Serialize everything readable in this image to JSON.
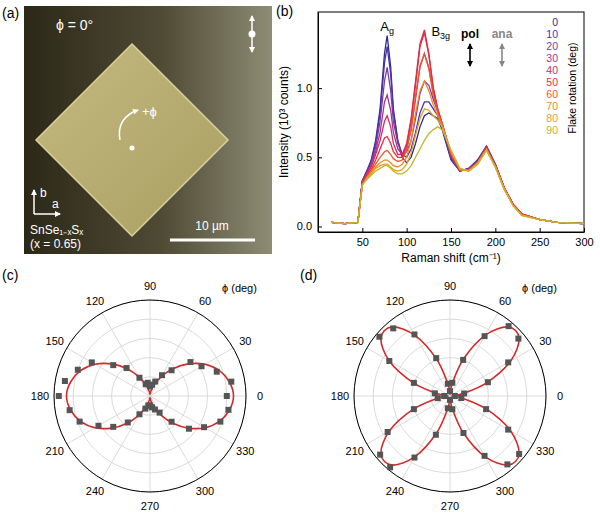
{
  "chart_data": [
    {
      "type": "image",
      "panel": "(a)",
      "annotations": {
        "angle": "ϕ = 0°",
        "rotation": "+ϕ",
        "axis_b": "b",
        "axis_a": "a",
        "formula": "SnSe₁₋ₓSₓ",
        "composition": "(x = 0.65)",
        "scale_bar": "10 µm"
      }
    },
    {
      "type": "line",
      "panel": "(b)",
      "xlabel": "Raman shift (cm⁻¹)",
      "ylabel": "Intensity (10³ counts)",
      "x": [
        15,
        30,
        45,
        50,
        55,
        60,
        65,
        70,
        75,
        78,
        82,
        85,
        90,
        95,
        100,
        105,
        110,
        115,
        120,
        125,
        130,
        135,
        140,
        150,
        160,
        170,
        180,
        190,
        200,
        210,
        220,
        230,
        250,
        270,
        300
      ],
      "xlim": [
        0,
        300
      ],
      "xticks": [
        50,
        100,
        150,
        200,
        250,
        300
      ],
      "ylim": [
        -0.04,
        1.55
      ],
      "yticks": [
        {
          "value": 0,
          "label": "0.0"
        },
        {
          "value": 0.5,
          "label": "0.5"
        },
        {
          "value": 1,
          "label": "1.0"
        }
      ],
      "legend": "upper right",
      "legend_title": "Flake rotation (deg)",
      "annotations": [
        "pol",
        "ana"
      ],
      "peak_labels": [
        {
          "text": "A",
          "subscript": "g",
          "x": 78
        },
        {
          "text": "B",
          "subscript": "3g",
          "x": 120
        }
      ],
      "series": [
        {
          "name": "0",
          "color": "#2b2a8c",
          "values": [
            0.03,
            0.02,
            0.03,
            0.33,
            0.4,
            0.48,
            0.62,
            0.85,
            1.25,
            1.38,
            1.15,
            0.85,
            0.62,
            0.5,
            0.46,
            0.5,
            0.6,
            0.72,
            0.8,
            0.82,
            0.8,
            0.78,
            0.7,
            0.48,
            0.4,
            0.42,
            0.48,
            0.58,
            0.45,
            0.28,
            0.16,
            0.09,
            0.05,
            0.03,
            0.02
          ]
        },
        {
          "name": "10",
          "color": "#4b35a8",
          "values": [
            0.03,
            0.02,
            0.03,
            0.33,
            0.4,
            0.47,
            0.6,
            0.82,
            1.18,
            1.3,
            1.1,
            0.82,
            0.62,
            0.52,
            0.5,
            0.56,
            0.68,
            0.82,
            0.9,
            0.9,
            0.85,
            0.8,
            0.72,
            0.49,
            0.4,
            0.42,
            0.48,
            0.58,
            0.45,
            0.28,
            0.16,
            0.09,
            0.05,
            0.03,
            0.02
          ]
        },
        {
          "name": "20",
          "color": "#7a3aa8",
          "values": [
            0.03,
            0.02,
            0.03,
            0.33,
            0.39,
            0.46,
            0.57,
            0.76,
            1.05,
            1.15,
            0.98,
            0.76,
            0.6,
            0.52,
            0.54,
            0.62,
            0.78,
            0.96,
            1.05,
            1.02,
            0.92,
            0.83,
            0.73,
            0.5,
            0.4,
            0.42,
            0.47,
            0.58,
            0.45,
            0.28,
            0.16,
            0.09,
            0.05,
            0.03,
            0.02
          ]
        },
        {
          "name": "30",
          "color": "#a8348c",
          "values": [
            0.03,
            0.02,
            0.03,
            0.32,
            0.38,
            0.45,
            0.54,
            0.68,
            0.9,
            0.95,
            0.84,
            0.68,
            0.56,
            0.52,
            0.57,
            0.7,
            0.92,
            1.15,
            1.25,
            1.15,
            0.96,
            0.84,
            0.74,
            0.51,
            0.41,
            0.41,
            0.47,
            0.57,
            0.44,
            0.28,
            0.16,
            0.09,
            0.05,
            0.03,
            0.02
          ]
        },
        {
          "name": "40",
          "color": "#cc2c62",
          "values": [
            0.03,
            0.02,
            0.03,
            0.32,
            0.38,
            0.43,
            0.52,
            0.62,
            0.76,
            0.8,
            0.72,
            0.6,
            0.52,
            0.52,
            0.6,
            0.78,
            1.05,
            1.32,
            1.42,
            1.25,
            1.0,
            0.85,
            0.75,
            0.52,
            0.41,
            0.41,
            0.46,
            0.57,
            0.44,
            0.28,
            0.16,
            0.09,
            0.05,
            0.03,
            0.02
          ]
        },
        {
          "name": "50",
          "color": "#e52e3a",
          "values": [
            0.03,
            0.02,
            0.03,
            0.31,
            0.37,
            0.41,
            0.48,
            0.56,
            0.64,
            0.65,
            0.6,
            0.54,
            0.5,
            0.5,
            0.58,
            0.76,
            1.02,
            1.3,
            1.4,
            1.24,
            1.0,
            0.85,
            0.74,
            0.52,
            0.41,
            0.41,
            0.46,
            0.57,
            0.44,
            0.28,
            0.16,
            0.09,
            0.05,
            0.03,
            0.02
          ]
        },
        {
          "name": "60",
          "color": "#ec5a2c",
          "values": [
            0.03,
            0.02,
            0.03,
            0.31,
            0.36,
            0.4,
            0.45,
            0.5,
            0.54,
            0.55,
            0.52,
            0.49,
            0.47,
            0.48,
            0.55,
            0.7,
            0.94,
            1.16,
            1.25,
            1.14,
            0.95,
            0.83,
            0.74,
            0.53,
            0.41,
            0.41,
            0.46,
            0.56,
            0.44,
            0.28,
            0.16,
            0.09,
            0.05,
            0.03,
            0.02
          ]
        },
        {
          "name": "70",
          "color": "#ee8a2a",
          "values": [
            0.03,
            0.02,
            0.03,
            0.3,
            0.35,
            0.39,
            0.43,
            0.46,
            0.48,
            0.48,
            0.46,
            0.44,
            0.43,
            0.45,
            0.5,
            0.62,
            0.82,
            0.98,
            1.05,
            0.98,
            0.88,
            0.8,
            0.73,
            0.54,
            0.41,
            0.4,
            0.46,
            0.56,
            0.43,
            0.27,
            0.15,
            0.08,
            0.05,
            0.03,
            0.02
          ]
        },
        {
          "name": "80",
          "color": "#dca22a",
          "values": [
            0.03,
            0.02,
            0.03,
            0.3,
            0.34,
            0.38,
            0.42,
            0.44,
            0.45,
            0.45,
            0.43,
            0.41,
            0.4,
            0.41,
            0.45,
            0.53,
            0.66,
            0.78,
            0.85,
            0.84,
            0.8,
            0.77,
            0.72,
            0.55,
            0.42,
            0.4,
            0.45,
            0.55,
            0.43,
            0.27,
            0.15,
            0.08,
            0.05,
            0.03,
            0.02
          ]
        },
        {
          "name": "90",
          "color": "#c9b22c",
          "values": [
            0.03,
            0.02,
            0.03,
            0.3,
            0.34,
            0.37,
            0.4,
            0.42,
            0.44,
            0.44,
            0.42,
            0.4,
            0.38,
            0.38,
            0.4,
            0.44,
            0.5,
            0.56,
            0.62,
            0.67,
            0.7,
            0.72,
            0.7,
            0.55,
            0.42,
            0.4,
            0.45,
            0.55,
            0.43,
            0.27,
            0.15,
            0.08,
            0.05,
            0.03,
            0.02
          ]
        }
      ]
    },
    {
      "type": "polar",
      "panel": "(c)",
      "xlabel": "ϕ (deg)",
      "x": [
        0,
        10,
        20,
        30,
        40,
        50,
        60,
        70,
        80,
        90,
        100,
        110,
        120,
        130,
        140,
        150,
        160,
        170,
        180,
        190,
        200,
        210,
        220,
        230,
        240,
        250,
        260,
        270,
        280,
        290,
        300,
        310,
        320,
        330,
        340,
        350
      ],
      "xlim": [
        0,
        360
      ],
      "xticks": [
        0,
        30,
        60,
        90,
        120,
        150,
        180,
        210,
        240,
        270,
        300,
        330
      ],
      "ylim": [
        0,
        1
      ],
      "yticks": [
        0.2,
        0.4,
        0.6,
        0.8,
        1
      ],
      "tick_labels": "x",
      "grid": true,
      "series": [
        {
          "type": "scatter",
          "color": "#555555",
          "marker": "square",
          "values": [
            0.8,
            0.86,
            0.74,
            0.62,
            0.55,
            0.35,
            0.25,
            0.16,
            0.12,
            0.1,
            0.14,
            0.13,
            0.22,
            0.38,
            0.5,
            0.7,
            0.8,
            0.9,
            0.95,
            0.85,
            0.78,
            0.62,
            0.5,
            0.36,
            0.22,
            0.14,
            0.1,
            0.1,
            0.12,
            0.15,
            0.2,
            0.35,
            0.53,
            0.65,
            0.78,
            0.83
          ]
        },
        {
          "type": "line",
          "color": "#d42a2a",
          "line_style": "solid",
          "values": [
            0.87,
            0.84,
            0.77,
            0.66,
            0.52,
            0.37,
            0.23,
            0.12,
            0.05,
            0.02,
            0.05,
            0.12,
            0.23,
            0.37,
            0.52,
            0.66,
            0.77,
            0.84,
            0.87,
            0.84,
            0.77,
            0.66,
            0.52,
            0.37,
            0.23,
            0.12,
            0.05,
            0.02,
            0.05,
            0.12,
            0.23,
            0.37,
            0.52,
            0.66,
            0.77,
            0.84
          ]
        }
      ]
    },
    {
      "type": "polar",
      "panel": "(d)",
      "xlabel": "ϕ (deg)",
      "x": [
        0,
        10,
        20,
        30,
        40,
        50,
        60,
        70,
        80,
        90,
        100,
        110,
        120,
        130,
        140,
        150,
        160,
        170,
        180,
        190,
        200,
        210,
        220,
        230,
        240,
        250,
        260,
        270,
        280,
        290,
        300,
        310,
        320,
        330,
        340,
        350
      ],
      "xlim": [
        0,
        360
      ],
      "xticks": [
        0,
        30,
        60,
        90,
        120,
        150,
        180,
        210,
        240,
        270,
        300,
        330
      ],
      "ylim": [
        0,
        1
      ],
      "yticks": [
        0.2,
        0.4,
        0.6,
        0.8,
        1
      ],
      "tick_labels": "x",
      "grid": true,
      "series": [
        {
          "type": "scatter",
          "color": "#555555",
          "marker": "square",
          "values": [
            0.05,
            0.15,
            0.42,
            0.7,
            0.93,
            0.95,
            0.72,
            0.4,
            0.14,
            0.05,
            0.13,
            0.42,
            0.74,
            0.92,
            0.96,
            0.73,
            0.4,
            0.16,
            0.06,
            0.13,
            0.4,
            0.75,
            0.95,
            0.97,
            0.74,
            0.43,
            0.13,
            0.04,
            0.14,
            0.41,
            0.72,
            0.93,
            0.94,
            0.7,
            0.4,
            0.12
          ]
        },
        {
          "type": "line",
          "color": "#d42a2a",
          "line_style": "solid",
          "values": [
            0.02,
            0.13,
            0.41,
            0.73,
            0.94,
            0.94,
            0.73,
            0.41,
            0.13,
            0.02,
            0.13,
            0.41,
            0.73,
            0.94,
            0.94,
            0.73,
            0.41,
            0.13,
            0.02,
            0.13,
            0.41,
            0.73,
            0.94,
            0.94,
            0.73,
            0.41,
            0.13,
            0.02,
            0.13,
            0.41,
            0.73,
            0.94,
            0.94,
            0.73,
            0.41,
            0.13
          ]
        }
      ]
    }
  ]
}
